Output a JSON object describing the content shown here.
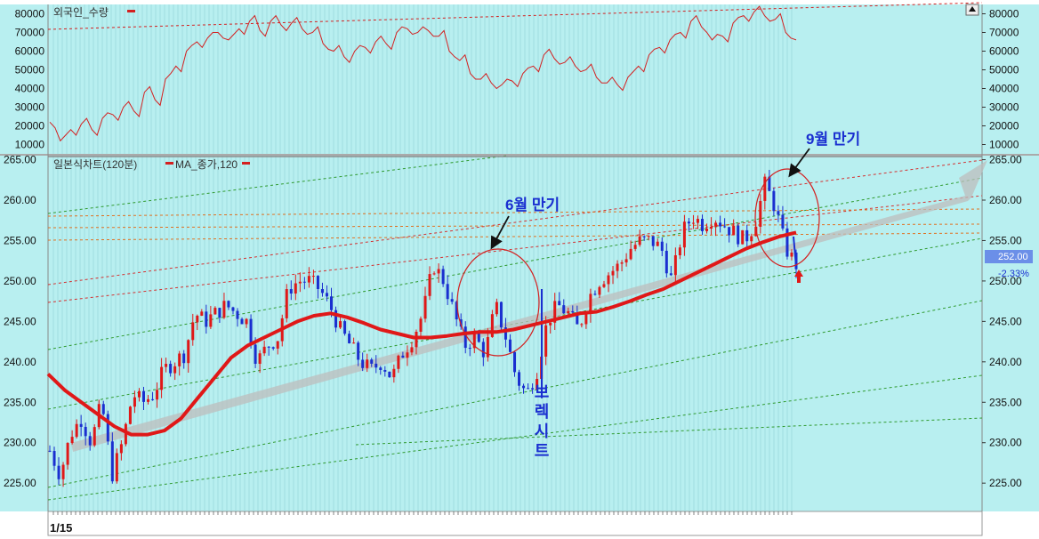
{
  "chart_data": [
    {
      "type": "line",
      "legend": "외국인_수량",
      "y_ticks": [
        80000,
        70000,
        60000,
        50000,
        40000,
        30000,
        20000,
        10000
      ],
      "ylim": [
        5000,
        85000
      ],
      "color": "#d42020",
      "series": [
        {
          "name": "외국인_수량",
          "values": [
            22000,
            12000,
            18000,
            21000,
            18000,
            24000,
            26000,
            30000,
            28000,
            38000,
            34000,
            45000,
            52000,
            60000,
            65000,
            67000,
            70000,
            66000,
            72000,
            76000,
            71000,
            76000,
            74000,
            75000,
            72000,
            70000,
            64000,
            60000,
            57000,
            60000,
            62000,
            65000,
            64000,
            70000,
            72000,
            70000,
            71000,
            68000,
            60000,
            55000,
            48000,
            45000,
            43000,
            42000,
            44000,
            48000,
            52000,
            58000,
            56000,
            54000,
            52000,
            50000,
            46000,
            43000,
            42000,
            46000,
            52000,
            58000,
            62000,
            66000,
            70000,
            76000,
            73000,
            66000,
            68000,
            75000,
            79000,
            81000,
            79000,
            77000,
            70000,
            66000
          ]
        }
      ]
    },
    {
      "type": "candlestick",
      "legend_series": [
        "일본식차트(120분)",
        "MA_종가,120"
      ],
      "y_ticks": [
        265.0,
        260.0,
        255.0,
        250.0,
        245.0,
        240.0,
        235.0,
        230.0,
        225.0
      ],
      "ylim": [
        221.5,
        265.5
      ],
      "x_label_start": "1/15",
      "last_value": "252.00",
      "last_change": "-2.33%",
      "price_path": [
        229,
        226,
        231,
        233,
        230,
        235,
        226,
        230,
        236,
        235,
        236,
        239,
        240,
        241,
        246,
        245,
        246,
        247,
        246,
        245,
        240,
        242,
        243,
        249,
        250,
        250,
        249,
        247,
        244,
        242,
        240,
        239,
        240,
        238,
        241,
        243,
        246,
        252,
        250,
        246,
        242,
        243,
        241,
        247,
        243,
        238,
        236,
        239,
        245,
        247,
        246,
        244,
        248,
        250,
        251,
        252,
        254,
        255,
        255,
        254,
        250,
        256,
        258,
        257,
        258,
        257,
        256,
        255,
        257,
        262,
        259,
        254,
        252
      ],
      "ma_path": [
        238.5,
        236.5,
        235,
        233.5,
        232,
        231,
        231,
        231.5,
        233,
        235.5,
        238,
        240.5,
        242,
        243,
        244,
        245,
        245.7,
        246,
        245.5,
        244.8,
        244,
        243.5,
        243,
        243,
        243.2,
        243.5,
        243.7,
        243.7,
        244,
        244.5,
        245,
        245.5,
        246,
        246.2,
        246.8,
        247.5,
        248.3,
        249,
        250,
        251,
        252,
        253,
        254,
        254.8,
        255.5,
        256
      ],
      "annotations": [
        {
          "text": "6월 만기"
        },
        {
          "text": "9월 만기"
        },
        {
          "text": "브렉시트"
        }
      ]
    }
  ]
}
